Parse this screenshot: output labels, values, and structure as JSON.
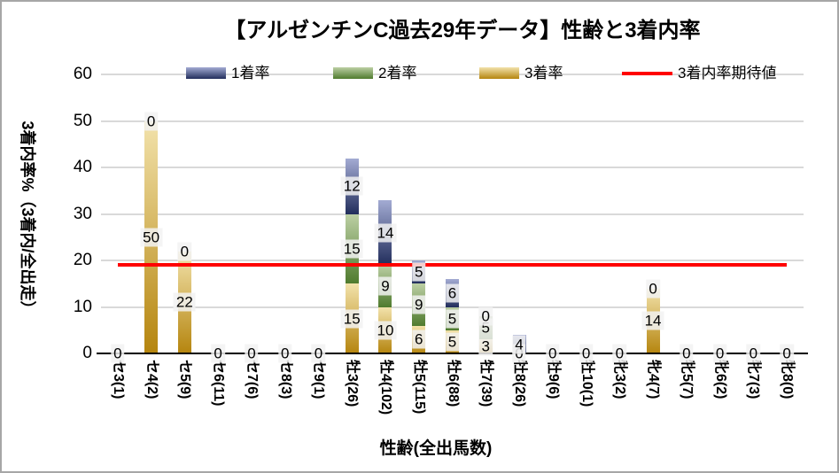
{
  "chart_data": {
    "type": "bar",
    "stacked": true,
    "title": "【アルゼンチンC過去29年データ】性齢と3着内率",
    "xlabel": "性齢(全出馬数)",
    "ylabel": "3着内率%（3着内/全出走）",
    "ylim": [
      0,
      60
    ],
    "yticks": [
      0,
      10,
      20,
      30,
      40,
      50,
      60
    ],
    "grid": true,
    "legend_position": "top",
    "categories": [
      "セ3(1)",
      "セ4(2)",
      "セ5(9)",
      "セ6(11)",
      "セ7(6)",
      "セ8(3)",
      "セ9(1)",
      "牡3(26)",
      "牡4(102)",
      "牡5(115)",
      "牡6(88)",
      "牡7(39)",
      "牡8(26)",
      "牡9(6)",
      "牡10(1)",
      "牝3(2)",
      "牝4(7)",
      "牝5(7)",
      "牝6(2)",
      "牝7(3)",
      "牝8(0)"
    ],
    "series": [
      {
        "name": "3着率",
        "color_light": "#f2e2ab",
        "color_dark": "#b5850e",
        "values": [
          0,
          50,
          22,
          0,
          0,
          0,
          0,
          15,
          10,
          6,
          5,
          3,
          0,
          0,
          0,
          0,
          14,
          0,
          0,
          0,
          0
        ]
      },
      {
        "name": "2着率",
        "color_light": "#bccfa4",
        "color_dark": "#4f7b2e",
        "values": [
          0,
          0,
          0,
          0,
          0,
          0,
          0,
          15,
          9,
          9,
          5,
          5,
          0,
          0,
          0,
          0,
          0,
          0,
          0,
          0,
          0
        ]
      },
      {
        "name": "1着率",
        "color_light": "#a3abd3",
        "color_dark": "#222e5c",
        "values": [
          0,
          0,
          0,
          0,
          0,
          0,
          0,
          12,
          14,
          5,
          6,
          0,
          4,
          0,
          0,
          0,
          0,
          0,
          0,
          0,
          0
        ]
      }
    ],
    "legend_order": [
      "1着率",
      "2着率",
      "3着率",
      "3着内率期待値"
    ],
    "expected_line": {
      "label": "3着内率期待値",
      "value": 19,
      "color": "#ff0000"
    },
    "data_labels": true,
    "colors": {
      "gridline": "#d9d9d9",
      "axis": "#000000",
      "label_box_bg": "#f2f2f2",
      "border": "#a6a6a6"
    }
  }
}
